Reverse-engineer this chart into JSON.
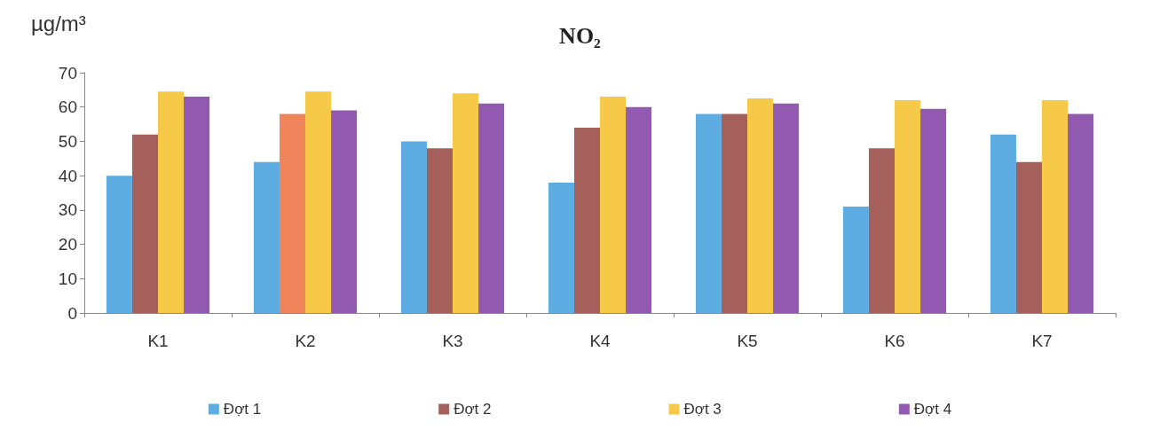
{
  "chart_data": {
    "type": "bar",
    "title": "NO₂",
    "ylabel": "µg/m³",
    "categories": [
      "K1",
      "K2",
      "K3",
      "K4",
      "K5",
      "K6",
      "K7"
    ],
    "series": [
      {
        "name": "Đợt 1",
        "color": "#5dade2",
        "values": [
          40,
          44,
          50,
          38,
          58,
          31,
          52
        ]
      },
      {
        "name": "Đợt 2",
        "color": "#a5605c",
        "colors": [
          "#a5605c",
          "#f0845a",
          "#a5605c",
          "#a5605c",
          "#a5605c",
          "#a5605c",
          "#a5605c"
        ],
        "values": [
          52,
          58,
          48,
          54,
          58,
          48,
          44
        ]
      },
      {
        "name": "Đợt 3",
        "color": "#f7c948",
        "values": [
          64.5,
          64.5,
          64,
          63,
          62.5,
          62,
          62
        ]
      },
      {
        "name": "Đợt 4",
        "color": "#9159b0",
        "values": [
          63,
          59,
          61,
          60,
          61,
          59.5,
          58
        ]
      }
    ],
    "ylim": [
      0,
      70
    ],
    "yticks": [
      0,
      10,
      20,
      30,
      40,
      50,
      60,
      70
    ],
    "grid": false,
    "legend": "bottom"
  }
}
